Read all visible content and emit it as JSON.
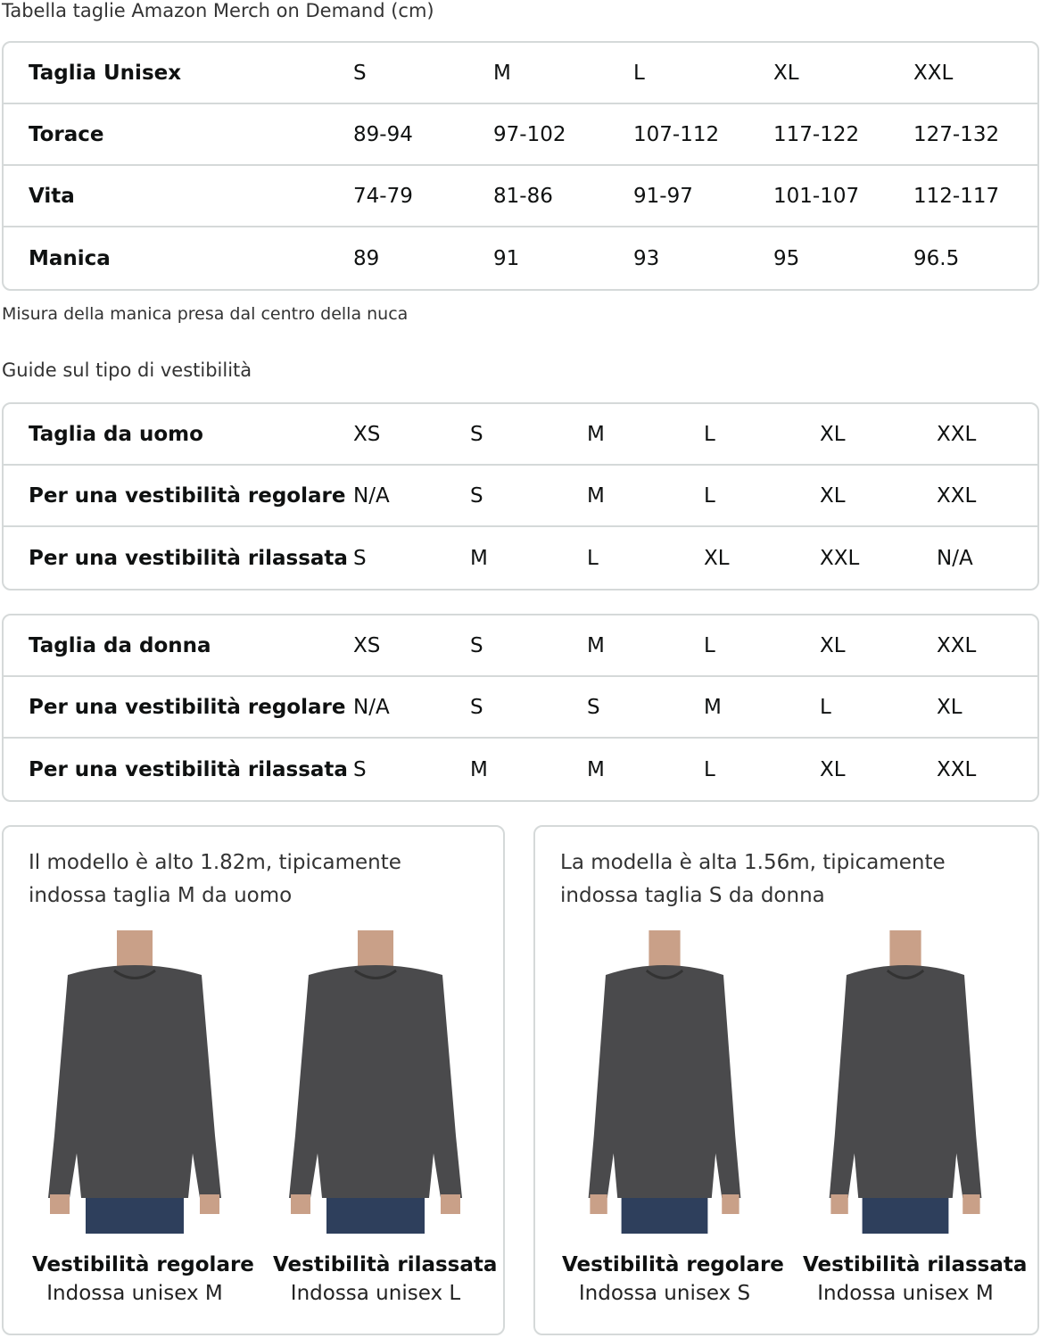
{
  "title": "Tabella taglie Amazon Merch on Demand (cm)",
  "unisex_table": {
    "rows": [
      [
        "Taglia Unisex",
        "S",
        "M",
        "L",
        "XL",
        "XXL"
      ],
      [
        "Torace",
        "89-94",
        "97-102",
        "107-112",
        "117-122",
        "127-132"
      ],
      [
        "Vita",
        "74-79",
        "81-86",
        "91-97",
        "101-107",
        "112-117"
      ],
      [
        "Manica",
        "89",
        "91",
        "93",
        "95",
        "96.5"
      ]
    ]
  },
  "sleeve_note": "Misura della manica presa dal centro della nuca",
  "fit_guide_title": "Guide sul tipo di vestibilità",
  "men_table": {
    "rows": [
      [
        "Taglia da uomo",
        "XS",
        "S",
        "M",
        "L",
        "XL",
        "XXL"
      ],
      [
        "Per una vestibilità regolare",
        "N/A",
        "S",
        "M",
        "L",
        "XL",
        "XXL"
      ],
      [
        "Per una vestibilità rilassata",
        "S",
        "M",
        "L",
        "XL",
        "XXL",
        "N/A"
      ]
    ]
  },
  "women_table": {
    "rows": [
      [
        "Taglia da donna",
        "XS",
        "S",
        "M",
        "L",
        "XL",
        "XXL"
      ],
      [
        "Per una vestibilità regolare",
        "N/A",
        "S",
        "S",
        "M",
        "L",
        "XL"
      ],
      [
        "Per una vestibilità rilassata",
        "S",
        "M",
        "M",
        "L",
        "XL",
        "XXL"
      ]
    ]
  },
  "cards": [
    {
      "caption": "Il modello è alto 1.82m, tipicamente indossa taglia M da uomo",
      "figures": [
        {
          "fit": "Vestibilità regolare",
          "wear": "Indossa unisex M"
        },
        {
          "fit": "Vestibilità rilassata",
          "wear": "Indossa unisex L"
        }
      ]
    },
    {
      "caption": "La modella è alta 1.56m, tipicamente indossa taglia S da donna",
      "figures": [
        {
          "fit": "Vestibilità regolare",
          "wear": "Indossa unisex S"
        },
        {
          "fit": "Vestibilità rilassata",
          "wear": "Indossa unisex M"
        }
      ]
    }
  ],
  "colors": {
    "sweatshirt": "#4a4a4c",
    "jeans": "#2e3f5c",
    "border": "#d5d9d9"
  }
}
